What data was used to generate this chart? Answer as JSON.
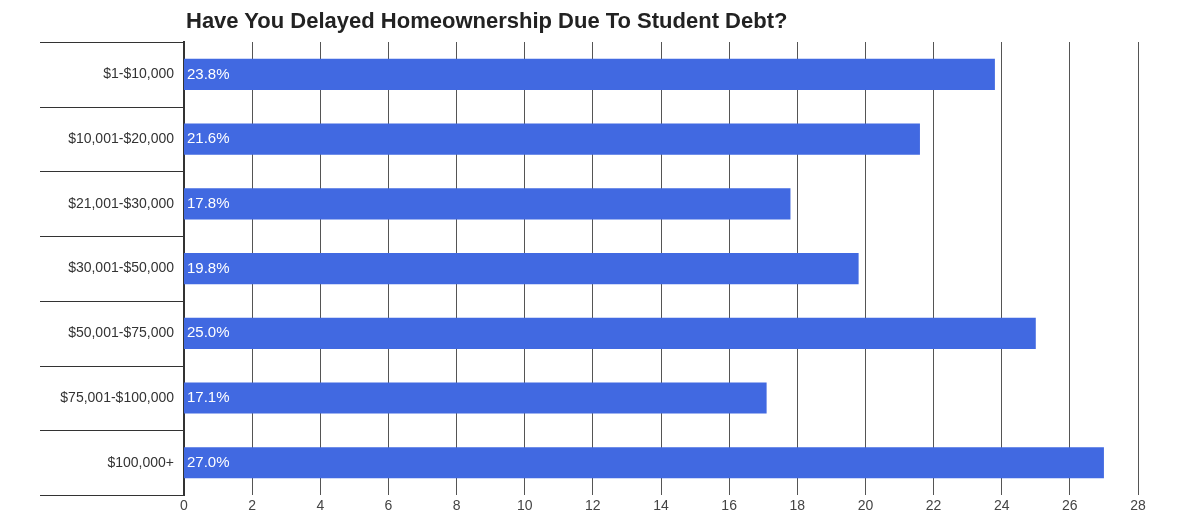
{
  "chart_data": {
    "type": "bar",
    "orientation": "horizontal",
    "title": "Have You Delayed Homeownership Due To Student Debt?",
    "categories": [
      "$1-$10,000",
      "$10,001-$20,000",
      "$21,001-$30,000",
      "$30,001-$50,000",
      "$50,001-$75,000",
      "$75,001-$100,000",
      "$100,000+"
    ],
    "values": [
      23.8,
      21.6,
      17.8,
      19.8,
      25.0,
      17.1,
      27.0
    ],
    "value_labels": [
      "23.8%",
      "21.6%",
      "17.8%",
      "19.8%",
      "25.0%",
      "17.1%",
      "27.0%"
    ],
    "color": "#4169e1",
    "xlim": [
      0,
      28
    ],
    "xticks": [
      0,
      2,
      4,
      6,
      8,
      10,
      12,
      14,
      16,
      18,
      20,
      22,
      24,
      26,
      28
    ],
    "grid": "x",
    "legend": false
  }
}
